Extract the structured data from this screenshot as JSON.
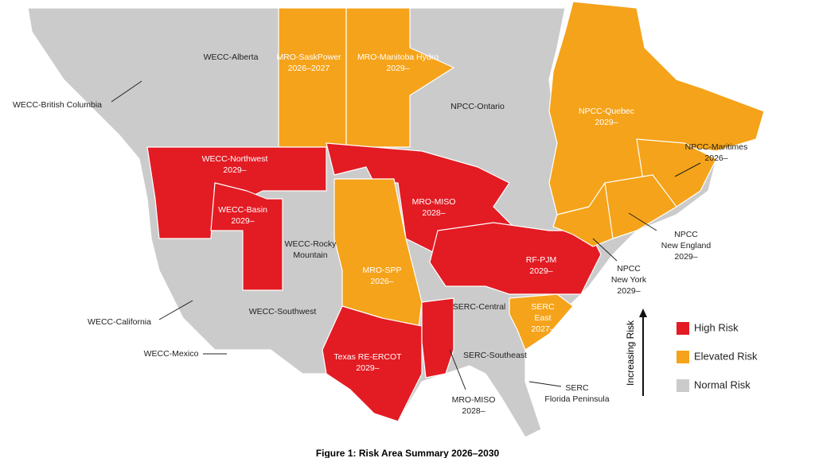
{
  "map": {
    "caption": "Figure 1: Risk Area Summary 2026–2030",
    "legend": {
      "axis_label": "Increasing Risk",
      "items": [
        {
          "label": "High Risk",
          "color": "#e31b23"
        },
        {
          "label": "Elevated Risk",
          "color": "#f5a31a"
        },
        {
          "label": "Normal Risk",
          "color": "#cbcbcb"
        }
      ]
    },
    "regions": [
      {
        "lines": [
          "WECC-British Columbia"
        ],
        "color": "#cbcbcb"
      },
      {
        "lines": [
          "WECC-Alberta"
        ],
        "color": "#cbcbcb"
      },
      {
        "lines": [
          "MRO-SaskPower",
          "2026–2027"
        ],
        "color": "#f5a31a"
      },
      {
        "lines": [
          "MRO-Manitoba Hydro",
          "2029–"
        ],
        "color": "#f5a31a"
      },
      {
        "lines": [
          "NPCC-Ontario"
        ],
        "color": "#cbcbcb"
      },
      {
        "lines": [
          "NPCC-Quebec",
          "2029–"
        ],
        "color": "#f5a31a"
      },
      {
        "lines": [
          "NPCC-Maritimes",
          "2026–"
        ],
        "color": "#f5a31a"
      },
      {
        "lines": [
          "WECC-Northwest",
          "2029–"
        ],
        "color": "#e31b23"
      },
      {
        "lines": [
          "WECC-Basin",
          "2029–"
        ],
        "color": "#e31b23"
      },
      {
        "lines": [
          "WECC-Rocky",
          "Mountain"
        ],
        "color": "#cbcbcb"
      },
      {
        "lines": [
          "MRO-MISO",
          "2028–"
        ],
        "color": "#e31b23"
      },
      {
        "lines": [
          "RF-PJM",
          "2029–"
        ],
        "color": "#e31b23"
      },
      {
        "lines": [
          "NPCC",
          "New England",
          "2029–"
        ],
        "color": "#f5a31a"
      },
      {
        "lines": [
          "NPCC",
          "New York",
          "2029–"
        ],
        "color": "#f5a31a"
      },
      {
        "lines": [
          "MRO-SPP",
          "2026–"
        ],
        "color": "#f5a31a"
      },
      {
        "lines": [
          "WECC-California"
        ],
        "color": "#cbcbcb"
      },
      {
        "lines": [
          "WECC-Southwest"
        ],
        "color": "#cbcbcb"
      },
      {
        "lines": [
          "SERC-Central"
        ],
        "color": "#cbcbcb"
      },
      {
        "lines": [
          "SERC",
          "East",
          "2027–"
        ],
        "color": "#f5a31a"
      },
      {
        "lines": [
          "WECC-Mexico"
        ],
        "color": "#cbcbcb"
      },
      {
        "lines": [
          "SERC-Southeast"
        ],
        "color": "#cbcbcb"
      },
      {
        "lines": [
          "Texas RE-ERCOT",
          "2029–"
        ],
        "color": "#e31b23"
      },
      {
        "lines": [
          "SERC",
          "Florida Peninsula"
        ],
        "color": "#cbcbcb"
      },
      {
        "lines": [
          "MRO-MISO",
          "2028–"
        ],
        "color": "#e31b23"
      }
    ]
  }
}
